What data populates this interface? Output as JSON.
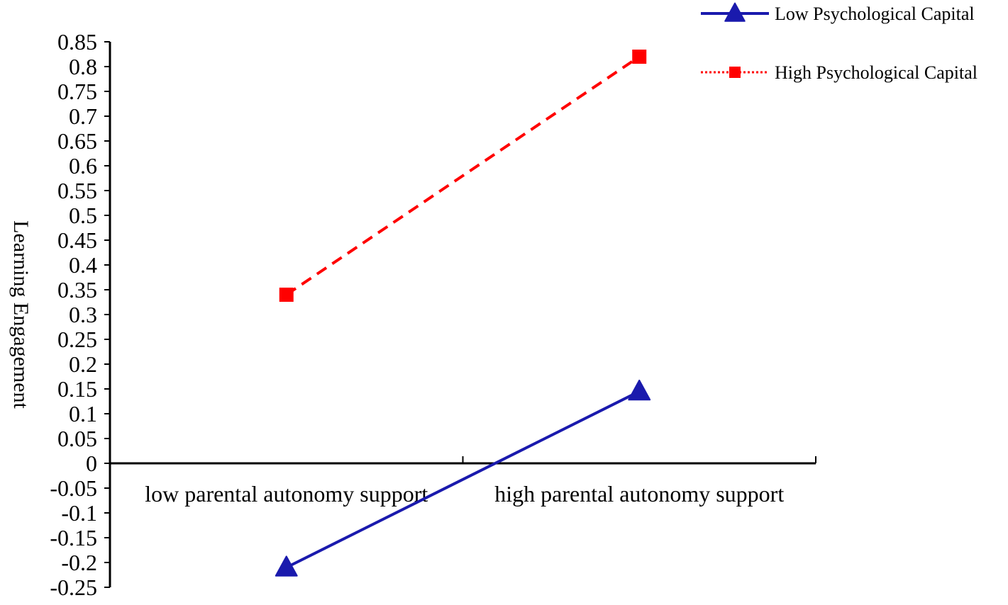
{
  "chart_data": {
    "type": "line",
    "categories": [
      "low parental autonomy support",
      "high parental autonomy support"
    ],
    "series": [
      {
        "name": "Low Psychological Capital",
        "values": [
          -0.21,
          0.145
        ],
        "color": "#1a1aad",
        "marker": "triangle",
        "line_style": "solid"
      },
      {
        "name": "High Psychological Capital",
        "values": [
          0.34,
          0.82
        ],
        "color": "#ff0000",
        "marker": "square",
        "line_style": "dashed"
      }
    ],
    "yticks": [
      "0.85",
      "0.8",
      "0.75",
      "0.7",
      "0.65",
      "0.6",
      "0.55",
      "0.5",
      "0.45",
      "0.4",
      "0.35",
      "0.3",
      "0.25",
      "0.2",
      "0.15",
      "0.1",
      "0.05",
      "0",
      "-0.05",
      "-0.1",
      "-0.15",
      "-0.2",
      "-0.25"
    ],
    "ylabel": "Learning  Engagement",
    "xlabel": "",
    "ylim": [
      -0.25,
      0.85
    ],
    "grid": false,
    "legend_position": "top-right"
  }
}
